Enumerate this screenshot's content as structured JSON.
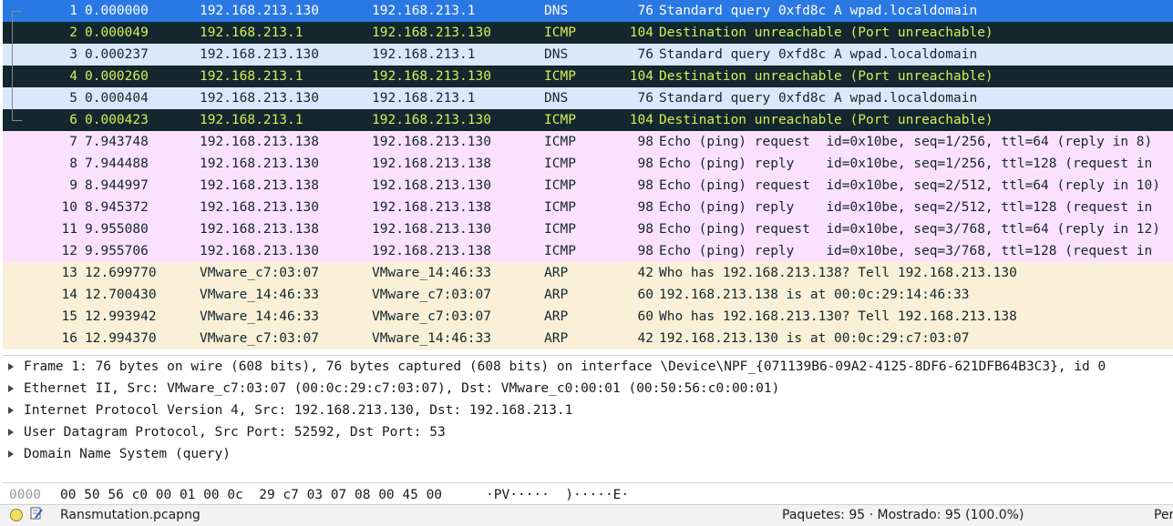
{
  "colors": {
    "selected_bg": "#2a78e4",
    "selected_fg": "#ffffff",
    "dns_bg": "#dae8fc",
    "dns_fg": "#12272e",
    "error_bg": "#12272e",
    "error_fg": "#d6ef57",
    "icmp_bg": "#fce0ff",
    "icmp_fg": "#12272e",
    "arp_bg": "#faf0d7",
    "arp_fg": "#12272e"
  },
  "packets": [
    {
      "no": "1",
      "time": "0.000000",
      "src": "192.168.213.130",
      "dst": "192.168.213.1",
      "proto": "DNS",
      "len": "76",
      "info": "Standard query 0xfd8c A wpad.localdomain",
      "style": "selected",
      "bracket": "top"
    },
    {
      "no": "2",
      "time": "0.000049",
      "src": "192.168.213.1",
      "dst": "192.168.213.130",
      "proto": "ICMP",
      "len": "104",
      "info": "Destination unreachable (Port unreachable)",
      "style": "error",
      "bracket": "mid"
    },
    {
      "no": "3",
      "time": "0.000237",
      "src": "192.168.213.130",
      "dst": "192.168.213.1",
      "proto": "DNS",
      "len": "76",
      "info": "Standard query 0xfd8c A wpad.localdomain",
      "style": "dns",
      "bracket": "mid"
    },
    {
      "no": "4",
      "time": "0.000260",
      "src": "192.168.213.1",
      "dst": "192.168.213.130",
      "proto": "ICMP",
      "len": "104",
      "info": "Destination unreachable (Port unreachable)",
      "style": "error",
      "bracket": "mid"
    },
    {
      "no": "5",
      "time": "0.000404",
      "src": "192.168.213.130",
      "dst": "192.168.213.1",
      "proto": "DNS",
      "len": "76",
      "info": "Standard query 0xfd8c A wpad.localdomain",
      "style": "dns",
      "bracket": "mid"
    },
    {
      "no": "6",
      "time": "0.000423",
      "src": "192.168.213.1",
      "dst": "192.168.213.130",
      "proto": "ICMP",
      "len": "104",
      "info": "Destination unreachable (Port unreachable)",
      "style": "error",
      "bracket": "bot"
    },
    {
      "no": "7",
      "time": "7.943748",
      "src": "192.168.213.138",
      "dst": "192.168.213.130",
      "proto": "ICMP",
      "len": "98",
      "info": "Echo (ping) request  id=0x10be, seq=1/256, ttl=64 (reply in 8)",
      "style": "icmp",
      "bracket": ""
    },
    {
      "no": "8",
      "time": "7.944488",
      "src": "192.168.213.130",
      "dst": "192.168.213.138",
      "proto": "ICMP",
      "len": "98",
      "info": "Echo (ping) reply    id=0x10be, seq=1/256, ttl=128 (request in",
      "style": "icmp",
      "bracket": ""
    },
    {
      "no": "9",
      "time": "8.944997",
      "src": "192.168.213.138",
      "dst": "192.168.213.130",
      "proto": "ICMP",
      "len": "98",
      "info": "Echo (ping) request  id=0x10be, seq=2/512, ttl=64 (reply in 10)",
      "style": "icmp",
      "bracket": ""
    },
    {
      "no": "10",
      "time": "8.945372",
      "src": "192.168.213.130",
      "dst": "192.168.213.138",
      "proto": "ICMP",
      "len": "98",
      "info": "Echo (ping) reply    id=0x10be, seq=2/512, ttl=128 (request in",
      "style": "icmp",
      "bracket": ""
    },
    {
      "no": "11",
      "time": "9.955080",
      "src": "192.168.213.138",
      "dst": "192.168.213.130",
      "proto": "ICMP",
      "len": "98",
      "info": "Echo (ping) request  id=0x10be, seq=3/768, ttl=64 (reply in 12)",
      "style": "icmp",
      "bracket": ""
    },
    {
      "no": "12",
      "time": "9.955706",
      "src": "192.168.213.130",
      "dst": "192.168.213.138",
      "proto": "ICMP",
      "len": "98",
      "info": "Echo (ping) reply    id=0x10be, seq=3/768, ttl=128 (request in",
      "style": "icmp",
      "bracket": ""
    },
    {
      "no": "13",
      "time": "12.699770",
      "src": "VMware_c7:03:07",
      "dst": "VMware_14:46:33",
      "proto": "ARP",
      "len": "42",
      "info": "Who has 192.168.213.138? Tell 192.168.213.130",
      "style": "arp",
      "bracket": ""
    },
    {
      "no": "14",
      "time": "12.700430",
      "src": "VMware_14:46:33",
      "dst": "VMware_c7:03:07",
      "proto": "ARP",
      "len": "60",
      "info": "192.168.213.138 is at 00:0c:29:14:46:33",
      "style": "arp",
      "bracket": ""
    },
    {
      "no": "15",
      "time": "12.993942",
      "src": "VMware_14:46:33",
      "dst": "VMware_c7:03:07",
      "proto": "ARP",
      "len": "60",
      "info": "Who has 192.168.213.130? Tell 192.168.213.138",
      "style": "arp",
      "bracket": ""
    },
    {
      "no": "16",
      "time": "12.994370",
      "src": "VMware_c7:03:07",
      "dst": "VMware_14:46:33",
      "proto": "ARP",
      "len": "42",
      "info": "192.168.213.130 is at 00:0c:29:c7:03:07",
      "style": "arp",
      "bracket": ""
    }
  ],
  "details": [
    "Frame 1: 76 bytes on wire (608 bits), 76 bytes captured (608 bits) on interface \\Device\\NPF_{071139B6-09A2-4125-8DF6-621DFB64B3C3}, id 0",
    "Ethernet II, Src: VMware_c7:03:07 (00:0c:29:c7:03:07), Dst: VMware_c0:00:01 (00:50:56:c0:00:01)",
    "Internet Protocol Version 4, Src: 192.168.213.130, Dst: 192.168.213.1",
    "User Datagram Protocol, Src Port: 52592, Dst Port: 53",
    "Domain Name System (query)"
  ],
  "bytes": {
    "offset": "0000",
    "hex": "00 50 56 c0 00 01 00 0c  29 c7 03 07 08 00 45 00",
    "ascii": "·PV·····  )·····E·"
  },
  "status": {
    "file": "Ransmutation.pcapng",
    "stats": "Paquetes: 95 · Mostrado: 95 (100.0%)",
    "profile": "Perfil"
  }
}
